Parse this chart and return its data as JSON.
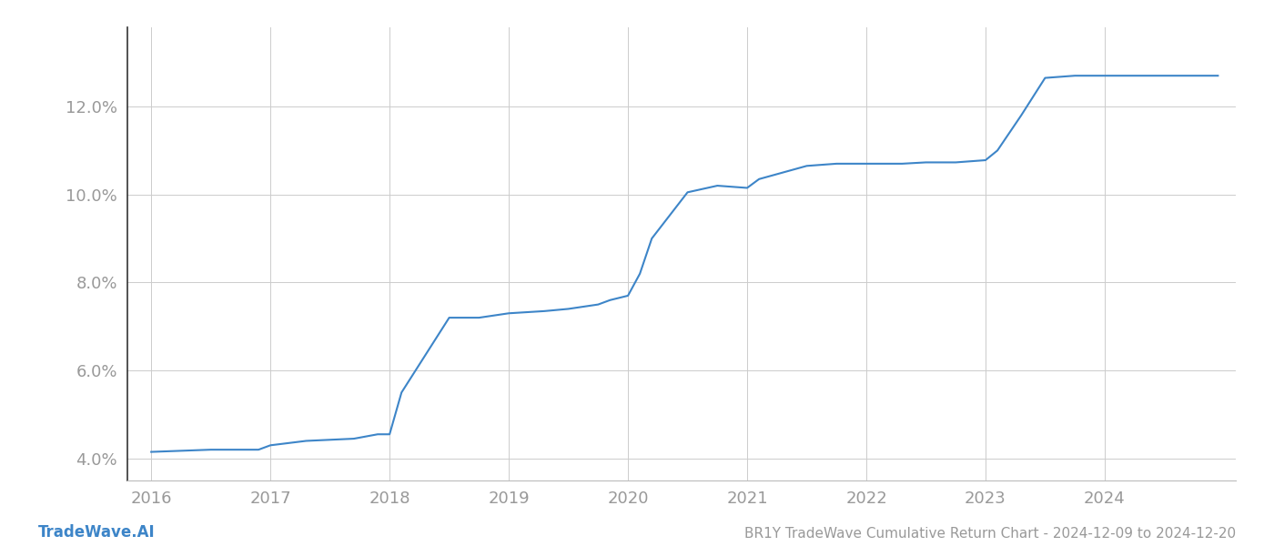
{
  "x_values": [
    2016.0,
    2016.5,
    2016.9,
    2017.0,
    2017.3,
    2017.7,
    2017.9,
    2018.0,
    2018.1,
    2018.5,
    2018.75,
    2019.0,
    2019.3,
    2019.5,
    2019.75,
    2019.85,
    2020.0,
    2020.1,
    2020.2,
    2020.5,
    2020.75,
    2021.0,
    2021.1,
    2021.3,
    2021.5,
    2021.75,
    2022.0,
    2022.3,
    2022.5,
    2022.75,
    2022.85,
    2023.0,
    2023.1,
    2023.3,
    2023.5,
    2023.75,
    2024.0,
    2024.5,
    2024.95
  ],
  "y_values": [
    0.0415,
    0.042,
    0.042,
    0.043,
    0.044,
    0.0445,
    0.0455,
    0.0455,
    0.055,
    0.072,
    0.072,
    0.073,
    0.0735,
    0.074,
    0.075,
    0.076,
    0.077,
    0.082,
    0.09,
    0.1005,
    0.102,
    0.1015,
    0.1035,
    0.105,
    0.1065,
    0.107,
    0.107,
    0.107,
    0.1073,
    0.1073,
    0.1075,
    0.1078,
    0.11,
    0.118,
    0.1265,
    0.127,
    0.127,
    0.127,
    0.127
  ],
  "line_color": "#3d85c8",
  "line_width": 1.5,
  "background_color": "#ffffff",
  "grid_color": "#cccccc",
  "title": "BR1Y TradeWave Cumulative Return Chart - 2024-12-09 to 2024-12-20",
  "footer_left": "TradeWave.AI",
  "x_ticks": [
    2016,
    2017,
    2018,
    2019,
    2020,
    2021,
    2022,
    2023,
    2024
  ],
  "y_ticks": [
    0.04,
    0.06,
    0.08,
    0.1,
    0.12
  ],
  "ylim": [
    0.035,
    0.138
  ],
  "xlim": [
    2015.8,
    2025.1
  ],
  "tick_label_color": "#999999",
  "title_color": "#999999",
  "footer_color": "#3d85c8",
  "title_fontsize": 11,
  "tick_fontsize": 13,
  "footer_fontsize": 12,
  "left_spine_color": "#333333"
}
